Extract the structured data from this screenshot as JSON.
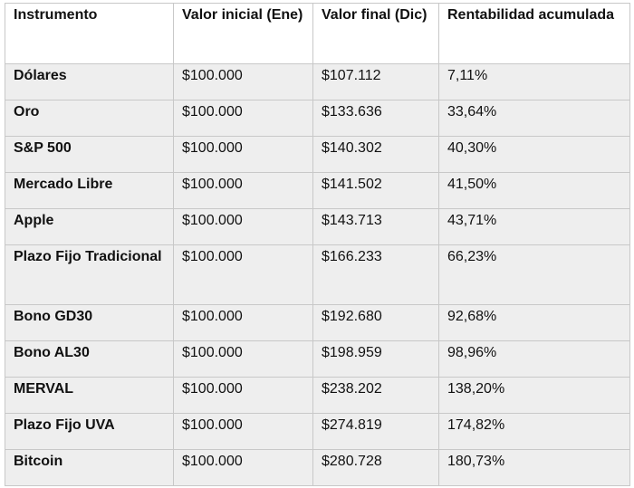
{
  "table": {
    "headers": [
      "Instrumento",
      "Valor inicial (Ene)",
      "Valor final (Dic)",
      "Rentabilidad acumulada"
    ],
    "rows": [
      {
        "instrumento": "Dólares",
        "inicial": "$100.000",
        "final": "$107.112",
        "rentabilidad": "7,11%"
      },
      {
        "instrumento": "Oro",
        "inicial": "$100.000",
        "final": "$133.636",
        "rentabilidad": "33,64%"
      },
      {
        "instrumento": "S&P 500",
        "inicial": "$100.000",
        "final": "$140.302",
        "rentabilidad": "40,30%"
      },
      {
        "instrumento": "Mercado Libre",
        "inicial": "$100.000",
        "final": "$141.502",
        "rentabilidad": "41,50%"
      },
      {
        "instrumento": "Apple",
        "inicial": "$100.000",
        "final": "$143.713",
        "rentabilidad": "43,71%"
      },
      {
        "instrumento": "Plazo Fijo Tradicional",
        "inicial": "$100.000",
        "final": "$166.233",
        "rentabilidad": "66,23%"
      },
      {
        "instrumento": "Bono GD30",
        "inicial": "$100.000",
        "final": "$192.680",
        "rentabilidad": "92,68%"
      },
      {
        "instrumento": "Bono AL30",
        "inicial": "$100.000",
        "final": "$198.959",
        "rentabilidad": "98,96%"
      },
      {
        "instrumento": "MERVAL",
        "inicial": "$100.000",
        "final": "$238.202",
        "rentabilidad": "138,20%"
      },
      {
        "instrumento": "Plazo Fijo UVA",
        "inicial": "$100.000",
        "final": "$274.819",
        "rentabilidad": "174,82%"
      },
      {
        "instrumento": "Bitcoin",
        "inicial": "$100.000",
        "final": "$280.728",
        "rentabilidad": "180,73%"
      }
    ]
  }
}
